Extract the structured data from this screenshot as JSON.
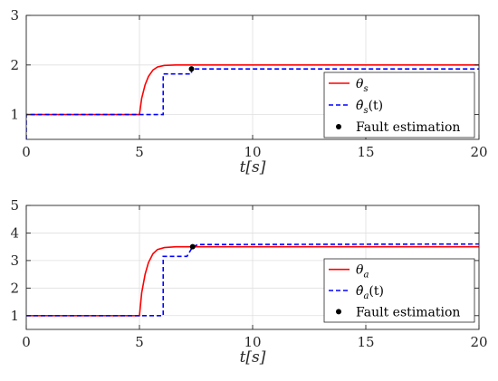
{
  "chart_data": [
    {
      "type": "line",
      "title": "",
      "xlabel": "t[s]",
      "ylabel": "",
      "xlim": [
        0,
        20
      ],
      "ylim": [
        0.5,
        3
      ],
      "xticks": [
        "0",
        "5",
        "10",
        "15",
        "20"
      ],
      "yticks": [
        "1",
        "2",
        "3"
      ],
      "grid": true,
      "legend_position": "bottom-right",
      "series": [
        {
          "name": "θs",
          "color": "#ff0000",
          "style": "solid",
          "points": [
            [
              0,
              1.0
            ],
            [
              5.0,
              1.0
            ],
            [
              5.1,
              1.33
            ],
            [
              5.25,
              1.6
            ],
            [
              5.4,
              1.77
            ],
            [
              5.6,
              1.9
            ],
            [
              5.8,
              1.96
            ],
            [
              6.1,
              1.99
            ],
            [
              6.6,
              2.0
            ],
            [
              20,
              2.0
            ]
          ]
        },
        {
          "name": "θ̂s(t)",
          "color": "#0000ff",
          "style": "dashed",
          "points": [
            [
              0,
              0.5
            ],
            [
              0,
              1.0
            ],
            [
              6.05,
              1.0
            ],
            [
              6.05,
              1.82
            ],
            [
              7.3,
              1.82
            ],
            [
              7.3,
              1.92
            ],
            [
              20,
              1.92
            ]
          ]
        }
      ],
      "markers": [
        {
          "name": "Fault estimation",
          "x": 7.3,
          "y": 1.92,
          "color": "#000000"
        }
      ]
    },
    {
      "type": "line",
      "title": "",
      "xlabel": "t[s]",
      "ylabel": "",
      "xlim": [
        0,
        20
      ],
      "ylim": [
        0.5,
        5
      ],
      "xticks": [
        "0",
        "5",
        "10",
        "15",
        "20"
      ],
      "yticks": [
        "1",
        "2",
        "3",
        "4",
        "5"
      ],
      "grid": true,
      "legend_position": "bottom-right",
      "series": [
        {
          "name": "θa",
          "color": "#ff0000",
          "style": "solid",
          "points": [
            [
              0,
              1.0
            ],
            [
              5.0,
              1.0
            ],
            [
              5.1,
              1.83
            ],
            [
              5.25,
              2.5
            ],
            [
              5.4,
              2.93
            ],
            [
              5.6,
              3.25
            ],
            [
              5.8,
              3.4
            ],
            [
              6.1,
              3.47
            ],
            [
              6.6,
              3.5
            ],
            [
              20,
              3.5
            ]
          ]
        },
        {
          "name": "θ̂a(t)",
          "color": "#0000ff",
          "style": "dashed",
          "points": [
            [
              0,
              1.0
            ],
            [
              6.05,
              1.0
            ],
            [
              6.05,
              3.15
            ],
            [
              7.1,
              3.15
            ],
            [
              7.35,
              3.5
            ],
            [
              7.6,
              3.58
            ],
            [
              20,
              3.6
            ]
          ]
        }
      ],
      "markers": [
        {
          "name": "Fault estimation",
          "x": 7.35,
          "y": 3.5,
          "color": "#000000"
        }
      ]
    }
  ],
  "legends": [
    {
      "items": [
        {
          "kind": "line-solid",
          "color": "#ff0000",
          "main": "θ",
          "sub": "s",
          "suffix": ""
        },
        {
          "kind": "line-dashed",
          "color": "#0000ff",
          "main": "θ̂",
          "sub": "s",
          "suffix": "(t)"
        },
        {
          "kind": "dot",
          "color": "#000000",
          "main": "Fault estimation",
          "sub": "",
          "suffix": ""
        }
      ]
    },
    {
      "items": [
        {
          "kind": "line-solid",
          "color": "#ff0000",
          "main": "θ",
          "sub": "a",
          "suffix": ""
        },
        {
          "kind": "line-dashed",
          "color": "#0000ff",
          "main": "θ̂",
          "sub": "a",
          "suffix": "(t)"
        },
        {
          "kind": "dot",
          "color": "#000000",
          "main": "Fault estimation",
          "sub": "",
          "suffix": ""
        }
      ]
    }
  ],
  "colors": {
    "axis": "#262626",
    "grid": "#dfdfdf"
  }
}
